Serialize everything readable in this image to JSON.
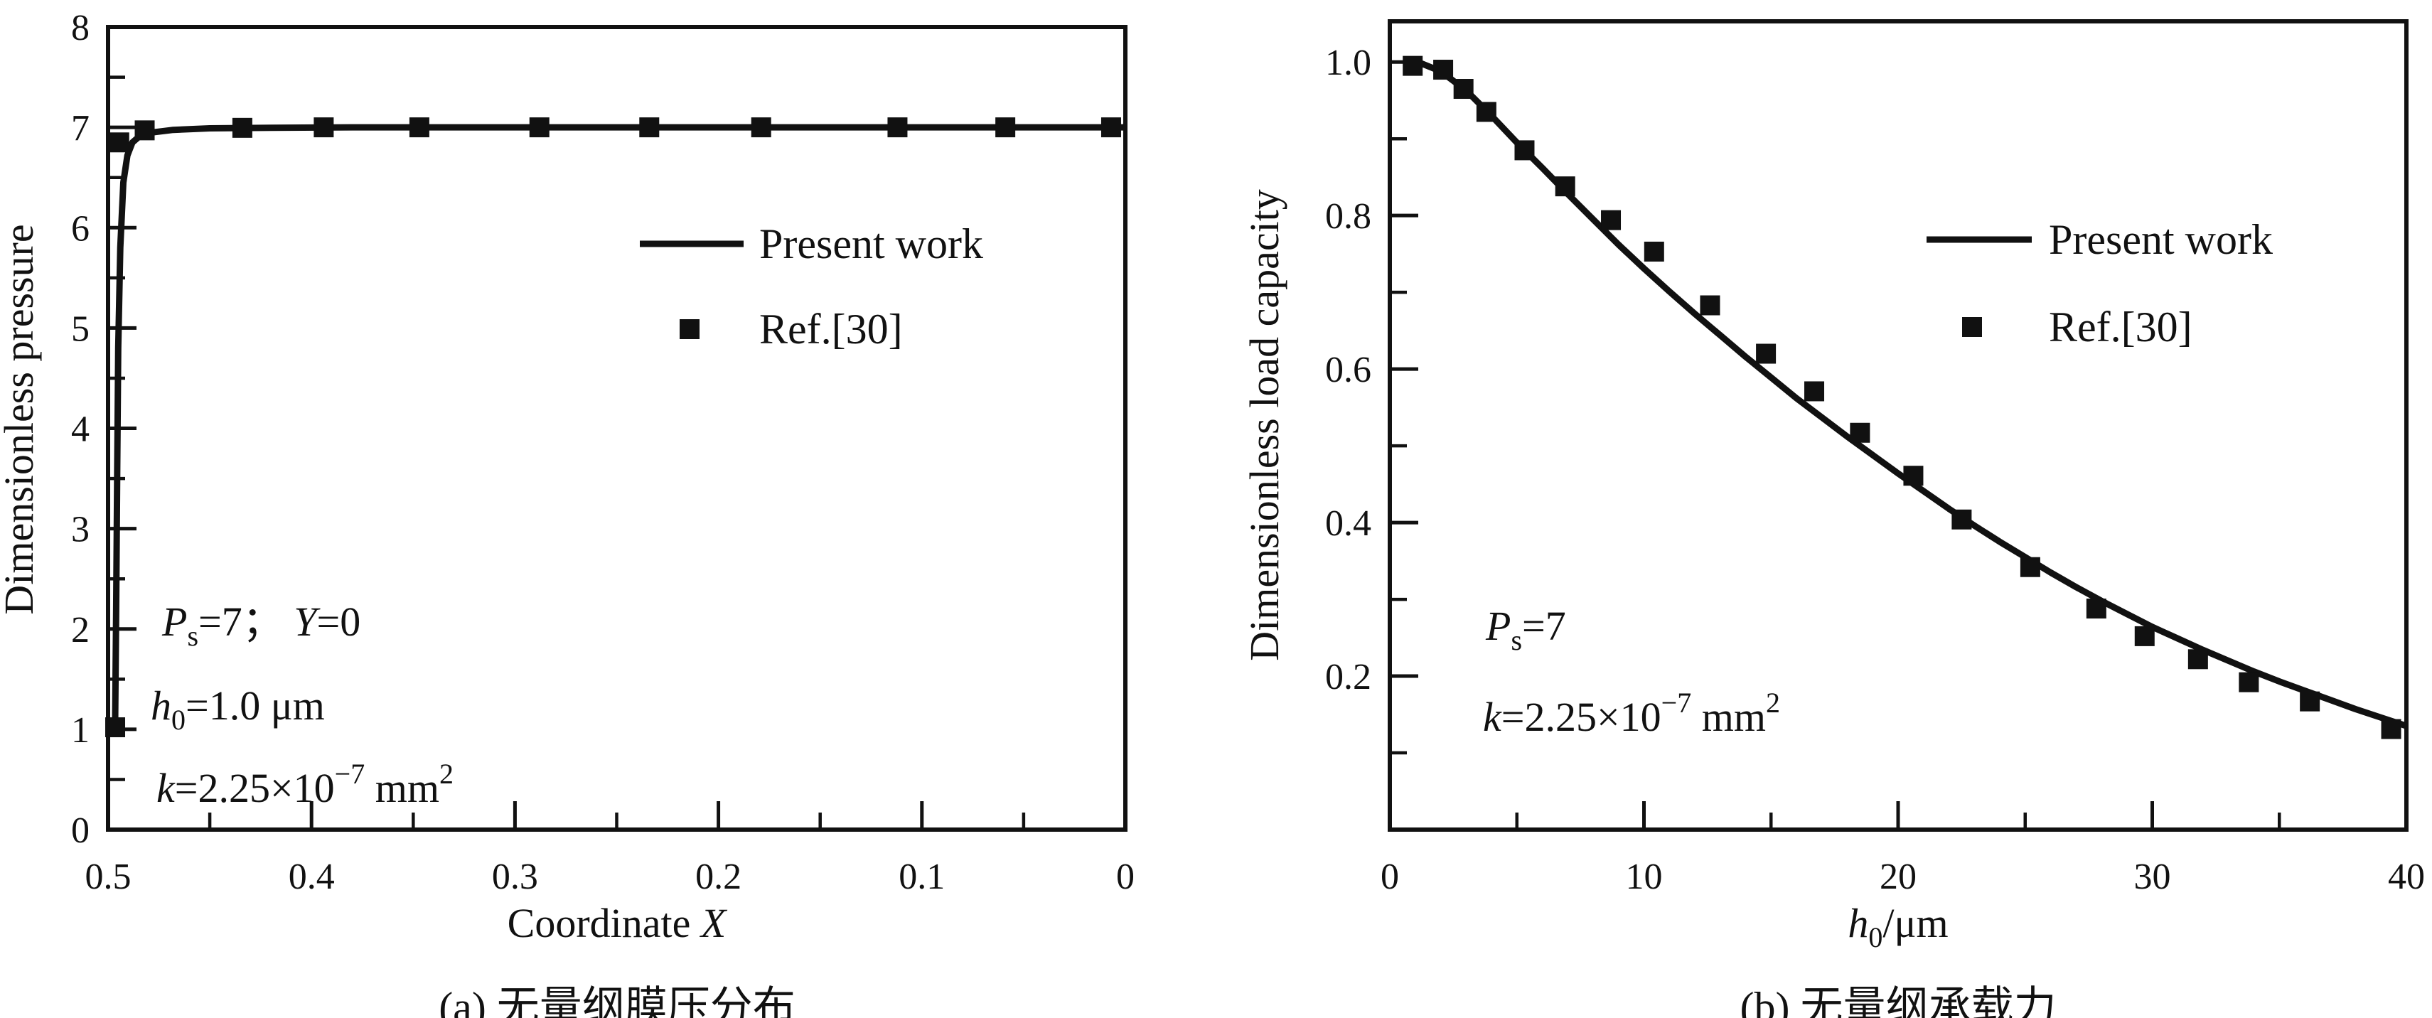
{
  "figure": {
    "background_color": "#ffffff",
    "ink_color": "#111111"
  },
  "chart_data": [
    {
      "id": "a",
      "type": "line+scatter",
      "caption": "(a) 无量纲膜压分布",
      "ylabel": "Dimensionless pressure",
      "xlabel_segments": [
        {
          "text": "Coordinate "
        },
        {
          "text": "X",
          "italic": true
        }
      ],
      "x_axis": {
        "min": 0.5,
        "max": 0,
        "reversed": true,
        "major_values": [
          0.5,
          0.4,
          0.3,
          0.2,
          0.1,
          0
        ],
        "major_labels": [
          "0.5",
          "0.4",
          "0.3",
          "0.2",
          "0.1",
          "0"
        ],
        "minor_values": [
          0.45,
          0.35,
          0.25,
          0.15,
          0.05
        ]
      },
      "y_axis": {
        "min": 0,
        "max": 8,
        "major_values": [
          0,
          1,
          2,
          3,
          4,
          5,
          6,
          7,
          8
        ],
        "major_labels": [
          "0",
          "1",
          "2",
          "3",
          "4",
          "5",
          "6",
          "7",
          "8"
        ],
        "minor_values": [
          0.5,
          1.5,
          2.5,
          3.5,
          4.5,
          5.5,
          6.5,
          7.5
        ]
      },
      "legend": {
        "line_label": "Present work",
        "marker_label": "Ref.[30]"
      },
      "annotation_lines": [
        [
          {
            "text": "P",
            "italic": true
          },
          {
            "text": "s",
            "sub": true
          },
          {
            "text": "=7；  "
          },
          {
            "text": "Y",
            "italic": true
          },
          {
            "text": "=0"
          }
        ],
        [
          {
            "text": "h",
            "italic": true
          },
          {
            "text": "0",
            "sub": true
          },
          {
            "text": "=1.0 μm"
          }
        ],
        [
          {
            "text": "k",
            "italic": true
          },
          {
            "text": "=2.25×10"
          },
          {
            "text": "−7",
            "sup": true
          },
          {
            "text": " mm"
          },
          {
            "text": "2",
            "sup": true
          }
        ]
      ],
      "series": [
        {
          "name": "Present work",
          "kind": "line",
          "points": [
            [
              0.4965,
              1.08
            ],
            [
              0.496,
              2.2
            ],
            [
              0.4955,
              3.6
            ],
            [
              0.495,
              4.8
            ],
            [
              0.494,
              5.8
            ],
            [
              0.4925,
              6.45
            ],
            [
              0.4905,
              6.72
            ],
            [
              0.488,
              6.85
            ],
            [
              0.484,
              6.92
            ],
            [
              0.478,
              6.95
            ],
            [
              0.468,
              6.975
            ],
            [
              0.45,
              6.99
            ],
            [
              0.42,
              6.995
            ],
            [
              0.38,
              7.0
            ],
            [
              0.3,
              7.0
            ],
            [
              0.2,
              7.0
            ],
            [
              0.1,
              7.0
            ],
            [
              0.0,
              7.0
            ]
          ]
        },
        {
          "name": "Ref.[30]",
          "kind": "scatter",
          "points": [
            [
              0.4965,
              1.02
            ],
            [
              0.4945,
              6.85
            ],
            [
              0.482,
              6.97
            ],
            [
              0.434,
              6.995
            ],
            [
              0.394,
              7.0
            ],
            [
              0.347,
              7.0
            ],
            [
              0.288,
              7.0
            ],
            [
              0.234,
              7.0
            ],
            [
              0.179,
              7.0
            ],
            [
              0.112,
              7.0
            ],
            [
              0.059,
              7.0
            ],
            [
              0.007,
              7.0
            ]
          ]
        }
      ]
    },
    {
      "id": "b",
      "type": "line+scatter",
      "caption": "(b) 无量纲承载力",
      "ylabel": "Dimensionless load capacity",
      "xlabel_segments": [
        {
          "text": "h",
          "italic": true
        },
        {
          "text": "0",
          "sub": true
        },
        {
          "text": "/μm"
        }
      ],
      "x_axis": {
        "min": 0,
        "max": 40,
        "reversed": false,
        "major_values": [
          0,
          10,
          20,
          30,
          40
        ],
        "major_labels": [
          "0",
          "10",
          "20",
          "30",
          "40"
        ],
        "minor_values": [
          5,
          15,
          25,
          35
        ]
      },
      "y_axis": {
        "min": 0,
        "max": 1.053,
        "major_values": [
          0.2,
          0.4,
          0.6,
          0.8,
          1.0
        ],
        "major_labels": [
          "0.2",
          "0.4",
          "0.6",
          "0.8",
          "1.0"
        ],
        "minor_values": [
          0.1,
          0.3,
          0.5,
          0.7,
          0.9
        ]
      },
      "legend": {
        "line_label": "Present work",
        "marker_label": "Ref.[30]"
      },
      "annotation_lines": [
        [
          {
            "text": "P",
            "italic": true
          },
          {
            "text": "s",
            "sub": true
          },
          {
            "text": "=7"
          }
        ],
        [
          {
            "text": "k",
            "italic": true
          },
          {
            "text": "=2.25×10"
          },
          {
            "text": "−7",
            "sup": true
          },
          {
            "text": " mm"
          },
          {
            "text": "2",
            "sup": true
          }
        ]
      ],
      "series": [
        {
          "name": "Present work",
          "kind": "line",
          "points": [
            [
              1.1,
              1.0
            ],
            [
              2,
              0.988
            ],
            [
              3,
              0.963
            ],
            [
              4,
              0.93
            ],
            [
              5,
              0.895
            ],
            [
              6,
              0.862
            ],
            [
              7,
              0.828
            ],
            [
              8,
              0.795
            ],
            [
              9,
              0.762
            ],
            [
              10,
              0.731
            ],
            [
              11,
              0.701
            ],
            [
              12,
              0.672
            ],
            [
              13,
              0.644
            ],
            [
              14,
              0.616
            ],
            [
              15,
              0.589
            ],
            [
              16,
              0.562
            ],
            [
              17,
              0.537
            ],
            [
              18,
              0.512
            ],
            [
              19,
              0.488
            ],
            [
              20,
              0.464
            ],
            [
              21,
              0.441
            ],
            [
              22,
              0.418
            ],
            [
              23,
              0.396
            ],
            [
              24,
              0.375
            ],
            [
              25,
              0.355
            ],
            [
              26,
              0.335
            ],
            [
              27,
              0.316
            ],
            [
              28,
              0.298
            ],
            [
              29,
              0.281
            ],
            [
              30,
              0.264
            ],
            [
              31,
              0.249
            ],
            [
              32,
              0.234
            ],
            [
              33,
              0.22
            ],
            [
              34,
              0.206
            ],
            [
              35,
              0.193
            ],
            [
              36,
              0.181
            ],
            [
              37,
              0.169
            ],
            [
              38,
              0.157
            ],
            [
              39,
              0.146
            ],
            [
              40,
              0.135
            ]
          ]
        },
        {
          "name": "Ref.[30]",
          "kind": "scatter",
          "points": [
            [
              0.9,
              0.995
            ],
            [
              2.1,
              0.99
            ],
            [
              2.9,
              0.965
            ],
            [
              3.8,
              0.935
            ],
            [
              5.3,
              0.885
            ],
            [
              6.9,
              0.838
            ],
            [
              8.7,
              0.794
            ],
            [
              10.4,
              0.753
            ],
            [
              12.6,
              0.683
            ],
            [
              14.8,
              0.62
            ],
            [
              16.7,
              0.571
            ],
            [
              18.5,
              0.517
            ],
            [
              20.6,
              0.461
            ],
            [
              22.5,
              0.404
            ],
            [
              25.2,
              0.342
            ],
            [
              27.8,
              0.288
            ],
            [
              29.7,
              0.252
            ],
            [
              31.8,
              0.222
            ],
            [
              33.8,
              0.192
            ],
            [
              36.2,
              0.167
            ],
            [
              39.4,
              0.131
            ]
          ]
        }
      ]
    }
  ]
}
